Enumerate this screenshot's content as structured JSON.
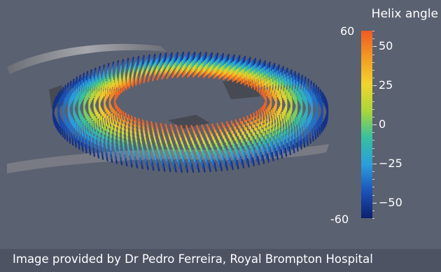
{
  "legend": {
    "title": "Helix angle",
    "max_label": "60",
    "min_label": "-60",
    "range": [
      -60,
      60
    ],
    "ticks": [
      {
        "value": 50,
        "label": "50"
      },
      {
        "value": 25,
        "label": "25"
      },
      {
        "value": 0,
        "label": "0"
      },
      {
        "value": -25,
        "label": "−25"
      },
      {
        "value": -50,
        "label": "−50"
      }
    ],
    "colormap": [
      "#0d1f6e",
      "#1c52b8",
      "#2a9fdc",
      "#35c0a0",
      "#a9d63a",
      "#f2d52c",
      "#f39a22",
      "#f05a24"
    ]
  },
  "scene": {
    "description_icon": "cardiac-fiber-ring-render",
    "background_color": "#5a6170",
    "mesh_color": "#8f9298"
  },
  "caption": "Image provided by Dr Pedro Ferreira, Royal Brompton Hospital"
}
